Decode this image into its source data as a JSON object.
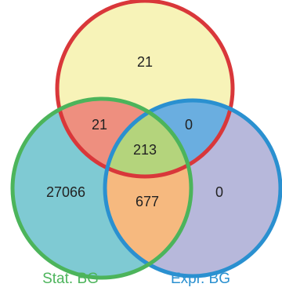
{
  "sets": [
    {
      "label": "Stat. BG"
    },
    {
      "label": "Expr. BG"
    }
  ],
  "regions": {
    "top_only": "21",
    "top_left": "21",
    "top_right": "0",
    "center": "213",
    "left_only": "27066",
    "left_right": "677",
    "right_only": "0"
  }
}
